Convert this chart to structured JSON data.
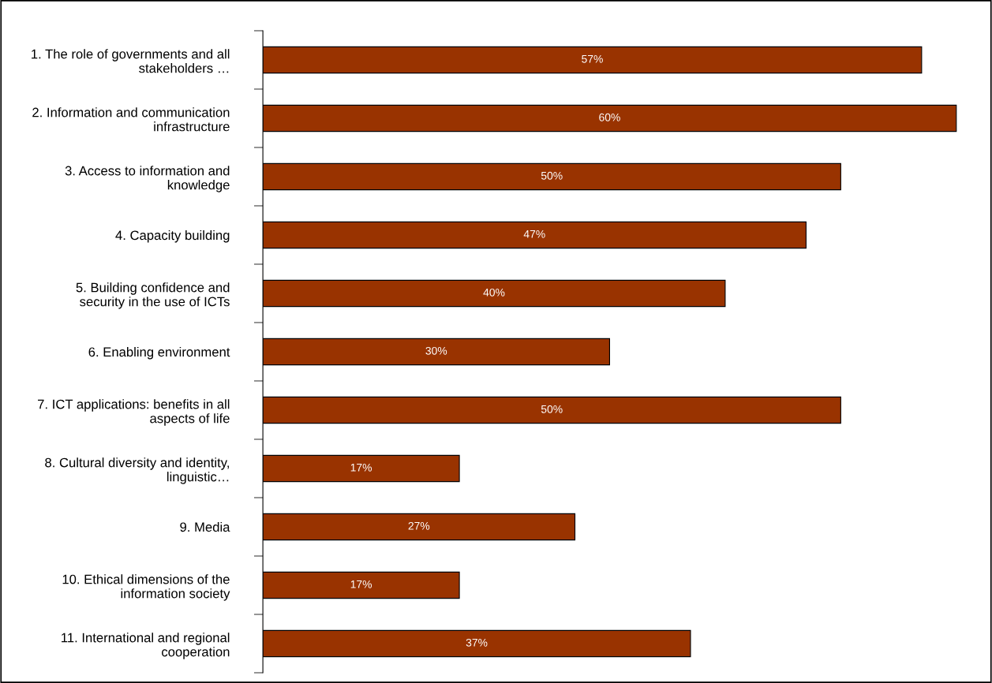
{
  "chart_data": {
    "type": "bar",
    "orientation": "horizontal",
    "categories": [
      "1. The role of governments and all\nstakeholders …",
      "2. Information and communication\ninfrastructure",
      "3. Access to information and\nknowledge",
      "4. Capacity building",
      "5. Building confidence and\nsecurity in the use of ICTs",
      "6. Enabling environment",
      "7. ICT applications: benefits in all\naspects of life",
      "8. Cultural diversity and identity,\nlinguistic…",
      "9. Media",
      "10. Ethical dimensions of the\ninformation society",
      "11. International and regional\ncooperation"
    ],
    "values": [
      57,
      60,
      50,
      47,
      40,
      30,
      50,
      17,
      27,
      17,
      37
    ],
    "value_labels": [
      "57%",
      "60%",
      "50%",
      "47%",
      "40%",
      "30%",
      "50%",
      "17%",
      "27%",
      "17%",
      "37%"
    ],
    "color": "#993300",
    "grid": false,
    "legend": false
  }
}
